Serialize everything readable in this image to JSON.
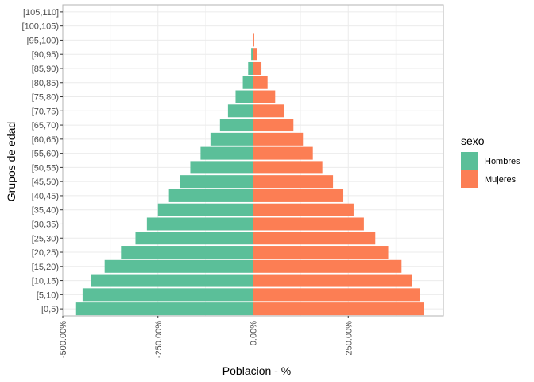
{
  "chart_data": {
    "type": "bar",
    "orientation": "horizontal",
    "title": "",
    "xlabel": "Poblacion - %",
    "ylabel": "Grupos de edad",
    "xlim": [
      -500,
      500
    ],
    "x_ticks": [
      -500,
      -250,
      0,
      250
    ],
    "x_tick_labels": [
      "-500.00%",
      "-250.00%",
      "0.00%",
      "250.00%"
    ],
    "grid": true,
    "legend": {
      "title": "sexo",
      "placement": "right",
      "entries": [
        {
          "label": "Hombres",
          "color": "#5bbf99"
        },
        {
          "label": "Mujeres",
          "color": "#fc7e54"
        }
      ]
    },
    "categories": [
      "[0,5)",
      "[5,10)",
      "[10,15)",
      "[15,20)",
      "[20,25)",
      "[25,30)",
      "[30,35)",
      "[35,40)",
      "[40,45)",
      "[45,50)",
      "[50,55)",
      "[55,60)",
      "[60,65)",
      "[65,70)",
      "[70,75)",
      "[75,80)",
      "[80,85)",
      "[85,90)",
      "[90,95)",
      "[95,100)",
      "[100,105)",
      "[105,110]"
    ],
    "series": [
      {
        "name": "Hombres",
        "color": "#5bbf99",
        "values": [
          -465,
          -448,
          -425,
          -390,
          -347,
          -309,
          -279,
          -250,
          -221,
          -192,
          -165,
          -138,
          -112,
          -87,
          -66,
          -46,
          -27,
          -13,
          -5,
          -1,
          0,
          0
        ]
      },
      {
        "name": "Mujeres",
        "color": "#fc7e54",
        "values": [
          448,
          438,
          418,
          390,
          355,
          321,
          291,
          264,
          237,
          210,
          182,
          157,
          131,
          106,
          81,
          58,
          38,
          22,
          10,
          3,
          0,
          0
        ]
      }
    ]
  }
}
